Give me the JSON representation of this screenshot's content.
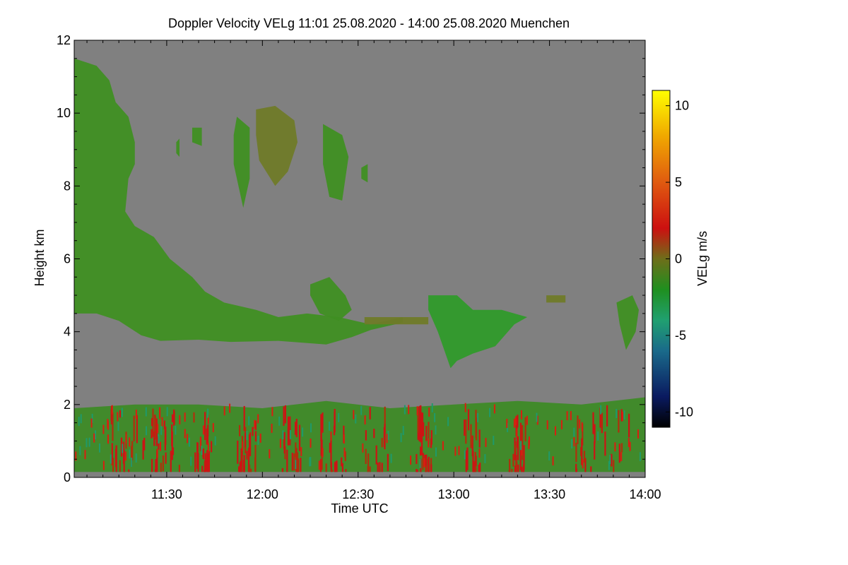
{
  "chart_data": {
    "type": "heatmap",
    "title": "Doppler Velocity VELg   11:01 25.08.2020 - 14:00 25.08.2020 Muenchen",
    "xlabel": "Time UTC",
    "ylabel": "Height km",
    "x_range_minutes_utc": [
      661,
      840
    ],
    "x_ticks": [
      {
        "minute": 690,
        "label": "11:30"
      },
      {
        "minute": 720,
        "label": "12:00"
      },
      {
        "minute": 750,
        "label": "12:30"
      },
      {
        "minute": 780,
        "label": "13:00"
      },
      {
        "minute": 810,
        "label": "13:30"
      },
      {
        "minute": 840,
        "label": "14:00"
      }
    ],
    "ylim": [
      0,
      12
    ],
    "y_ticks": [
      {
        "value": 0,
        "label": "0"
      },
      {
        "value": 2,
        "label": "2"
      },
      {
        "value": 4,
        "label": "4"
      },
      {
        "value": 6,
        "label": "6"
      },
      {
        "value": 8,
        "label": "8"
      },
      {
        "value": 10,
        "label": "10"
      },
      {
        "value": 12,
        "label": "12"
      }
    ],
    "colorbar": {
      "label": "VELg m/s",
      "range": [
        -11,
        11
      ],
      "ticks": [
        {
          "value": 10,
          "label": "10"
        },
        {
          "value": 5,
          "label": "5"
        },
        {
          "value": 0,
          "label": "0"
        },
        {
          "value": -5,
          "label": "-5"
        },
        {
          "value": -10,
          "label": "-10"
        }
      ],
      "stops": [
        {
          "value": -11,
          "color": "#000000"
        },
        {
          "value": -9,
          "color": "#0a1a60"
        },
        {
          "value": -6,
          "color": "#1a6a8a"
        },
        {
          "value": -4,
          "color": "#20a070"
        },
        {
          "value": -2,
          "color": "#1f8f1f"
        },
        {
          "value": 0,
          "color": "#6e6e1a"
        },
        {
          "value": 2,
          "color": "#cc1010"
        },
        {
          "value": 5,
          "color": "#e05a10"
        },
        {
          "value": 8,
          "color": "#f0a800"
        },
        {
          "value": 11,
          "color": "#ffff00"
        }
      ]
    },
    "background_color": "#808080",
    "echo_regions": [
      {
        "name": "boundary-layer",
        "t": [
          661,
          840
        ],
        "h": [
          0,
          2.2
        ],
        "velocity_approx": "-3 to +3"
      },
      {
        "name": "deep-cloud",
        "t": [
          661,
          760
        ],
        "h": [
          3.7,
          11.5
        ],
        "velocity_approx": "-2 to 0"
      },
      {
        "name": "upper-cloud-a",
        "t": [
          712,
          717
        ],
        "h": [
          7.4,
          9.8
        ],
        "velocity_approx": "-2"
      },
      {
        "name": "upper-cloud-b",
        "t": [
          718,
          732
        ],
        "h": [
          8.0,
          10.2
        ],
        "velocity_approx": "-2"
      },
      {
        "name": "upper-cloud-c",
        "t": [
          739,
          748
        ],
        "h": [
          7.5,
          9.6
        ],
        "velocity_approx": "-2"
      },
      {
        "name": "mid-cloud",
        "t": [
          776,
          803
        ],
        "h": [
          3.0,
          5.0
        ],
        "velocity_approx": "-2 to 0"
      },
      {
        "name": "mid-cloud-right",
        "t": [
          831,
          837
        ],
        "h": [
          3.4,
          5.0
        ],
        "velocity_approx": "-1"
      }
    ]
  }
}
